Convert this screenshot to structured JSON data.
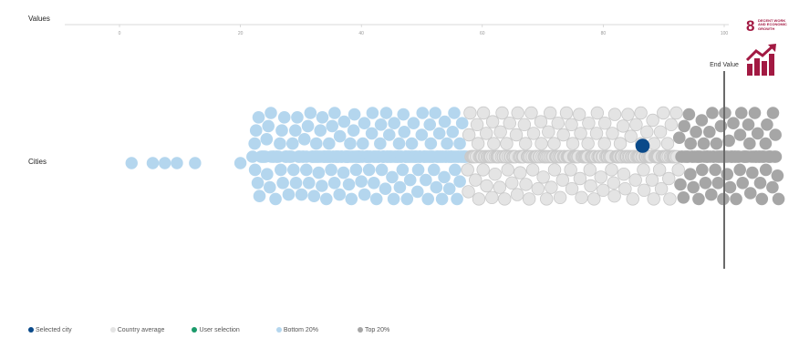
{
  "chart_data": {
    "type": "scatter",
    "style": "beeswarm",
    "x_axis": {
      "label": "Values",
      "range": [
        0,
        100
      ],
      "ticks": [
        0,
        20,
        40,
        60,
        80,
        100
      ],
      "tick_labels": [
        "0",
        "20",
        "40",
        "60",
        "80",
        "100"
      ]
    },
    "y_axis": {
      "label": "Cities"
    },
    "end_value": {
      "label": "End Value",
      "value": 100
    },
    "bottom20_threshold": 57.5,
    "top20_threshold": 92.5,
    "selected_city": {
      "value": 86.5,
      "color": "#0a4a8a"
    },
    "isolated_low_values": [
      2,
      5.5,
      7.5,
      9.5,
      12.5,
      20
    ],
    "groups": [
      {
        "from": 22,
        "to": 32,
        "count": 55
      },
      {
        "from": 32,
        "to": 40,
        "count": 65
      },
      {
        "from": 40,
        "to": 50,
        "count": 80
      },
      {
        "from": 50,
        "to": 58,
        "count": 60
      },
      {
        "from": 58,
        "to": 70,
        "count": 90
      },
      {
        "from": 70,
        "to": 82,
        "count": 95
      },
      {
        "from": 82,
        "to": 92,
        "count": 85
      },
      {
        "from": 92,
        "to": 100,
        "count": 50
      },
      {
        "from": 100,
        "to": 109,
        "count": 55
      }
    ],
    "colors": {
      "selected": "#0a4a8a",
      "country_average": "#e4e4e4",
      "user_selection": "#1a9a6a",
      "bottom20": "#b4d6ee",
      "top20": "#a6a6a6"
    },
    "legend": [
      {
        "label": "Selected city",
        "color": "#0a4a8a"
      },
      {
        "label": "Country average",
        "color": "#e4e4e4"
      },
      {
        "label": "User selection",
        "color": "#1a9a6a"
      },
      {
        "label": "Bottom 20%",
        "color": "#b4d6ee"
      },
      {
        "label": "Top 20%",
        "color": "#a6a6a6"
      }
    ]
  },
  "badge": {
    "number": "8",
    "text": "Decent work and economic growth",
    "color": "#a21942",
    "icon": "growth-bar-chart-icon"
  }
}
